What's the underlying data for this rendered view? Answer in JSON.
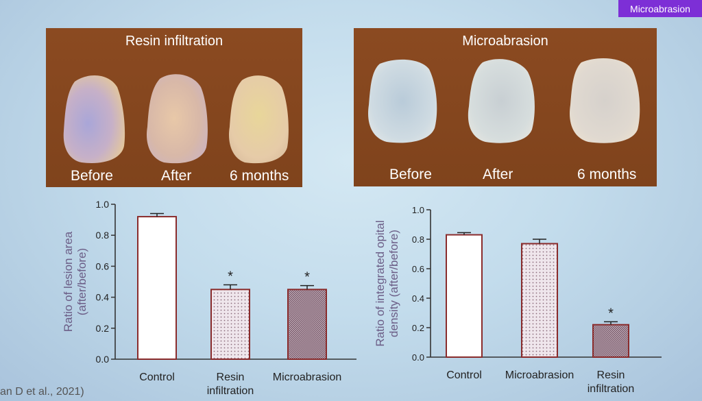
{
  "slide": {
    "tag": "Microabrasion",
    "citation": "an D et al., 2021)"
  },
  "panels": {
    "left": {
      "title": "Resin infiltration",
      "captions": [
        "Before",
        "After",
        "6 months"
      ]
    },
    "right": {
      "title": "Microabrasion",
      "captions": [
        "Before",
        "After",
        "6 months"
      ]
    }
  },
  "colors": {
    "panel": "#8b4a21",
    "tag": "#7d2fd6",
    "bar_stroke": "#8a2b2b"
  },
  "chart_data": [
    {
      "type": "bar",
      "ylabel_lines": [
        "Ratio of lesion area",
        "(after/before)"
      ],
      "categories": [
        "Control",
        "Resin infiltration",
        "Microabrasion"
      ],
      "category_lines": [
        [
          "Control"
        ],
        [
          "Resin",
          "infiltration"
        ],
        [
          "Microabrasion"
        ]
      ],
      "values": [
        0.92,
        0.45,
        0.45
      ],
      "errors": [
        0.02,
        0.03,
        0.025
      ],
      "significance": [
        "",
        "*",
        "*"
      ],
      "patterns": [
        "none",
        "dots",
        "dense"
      ],
      "ylim": [
        0,
        1.0
      ],
      "yticks": [
        "0.0",
        "0.2",
        "0.4",
        "0.6",
        "0.8",
        "1.0"
      ]
    },
    {
      "type": "bar",
      "ylabel_lines": [
        "Ratio of integrated opital",
        "density (after/before)"
      ],
      "categories": [
        "Control",
        "Microabrasion",
        "Resin infiltration"
      ],
      "category_lines": [
        [
          "Control"
        ],
        [
          "Microabrasion"
        ],
        [
          "Resin",
          "infiltration"
        ]
      ],
      "values": [
        0.83,
        0.77,
        0.22
      ],
      "errors": [
        0.015,
        0.03,
        0.02
      ],
      "significance": [
        "",
        "",
        "*"
      ],
      "patterns": [
        "none",
        "dots",
        "dense"
      ],
      "ylim": [
        0,
        1.0
      ],
      "yticks": [
        "0.0",
        "0.2",
        "0.4",
        "0.6",
        "0.8",
        "1.0"
      ]
    }
  ]
}
